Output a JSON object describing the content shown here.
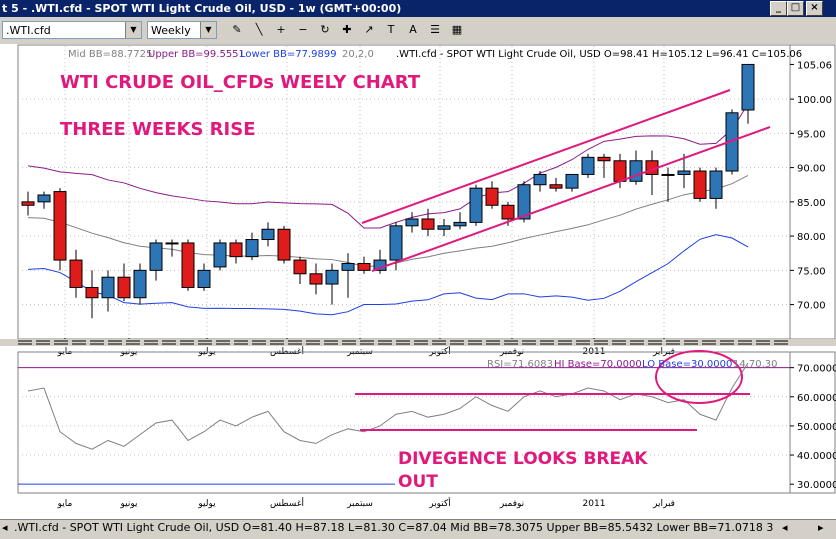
{
  "window": {
    "title": "t 5 - .WTI.cfd - SPOT WTI Light Crude Oil, USD - 1w (GMT+00:00)",
    "buttons": [
      "_",
      "□",
      "×"
    ]
  },
  "toolbar": {
    "symbol_value": ".WTI.cfd",
    "period_value": "Weekly",
    "tools": [
      "pencil-icon",
      "line-icon",
      "zoom-in-icon",
      "zoom-out-icon",
      "refresh-icon",
      "crosshair-icon",
      "arrow-icon",
      "text-icon",
      "label-icon",
      "list-icon",
      "grid-icon"
    ],
    "tool_glyphs": [
      "✎",
      "╲",
      "+",
      "−",
      "↻",
      "✚",
      "↗",
      "T",
      "A",
      "☰",
      "▦"
    ]
  },
  "price_panel": {
    "bb_legend_mid": "Mid BB=88.7725",
    "bb_legend_upper": "Upper BB=99.5551",
    "bb_legend_lower": "Lower BB=77.9899",
    "bb_legend_params": "20,2,0",
    "ohlc_legend": ".WTI.cfd - SPOT WTI Light Crude Oil, USD O=98.41 H=105.12 L=96.41 C=105.06",
    "annotation_title": "WTI CRUDE OIL_CFDs  WEELY CHART",
    "annotation_subtitle": "THREE WEEKS RISE",
    "y_ticks": [
      "105.06",
      "100.00",
      "95.00",
      "90.00",
      "85.00",
      "80.00",
      "75.00",
      "70.00"
    ],
    "x_labels": [
      "مايو",
      "يونيو",
      "يوليو",
      "أغسطس",
      "سبتمبر",
      "أكتوبر",
      "نوفمبر",
      "2011",
      "فبراير"
    ]
  },
  "rsi_panel": {
    "legend_rsi": "RSI=71.6083",
    "legend_hi": "HI Base=70.0000",
    "legend_lo": "LO Base=30.0000",
    "legend_params": "14,70,30",
    "y_ticks": [
      "70.0000",
      "60.0000",
      "50.0000",
      "40.0000",
      "30.0000"
    ],
    "x_labels": [
      "مايو",
      "يونيو",
      "يوليو",
      "أغسطس",
      "سبتمبر",
      "أكتوبر",
      "نوفمبر",
      "2011",
      "فبراير"
    ],
    "annotation_line1": "DIVEGENCE LOOKS BREAK",
    "annotation_line2": "OUT"
  },
  "status_bar": {
    "text": ".WTI.cfd - SPOT WTI Light Crude Oil, USD O=81.40 H=87.18 L=81.30 C=87.04  Mid BB=78.3075 Upper BB=85.5432 Lower BB=71.0718  3",
    "glyphs": [
      "◂",
      "▸",
      "◂",
      "▸"
    ]
  },
  "colors": {
    "bullish": "#2e75b6",
    "bearish": "#e01b1b",
    "annotation": "#e0197d",
    "bb_upper_lower": "#8b1a8b",
    "bb_lower": "#1e3ee6",
    "bb_mid": "#808080",
    "title_bar": "#0a246a"
  },
  "chart_data": {
    "type": "candlestick",
    "ylim": [
      66,
      106
    ],
    "candles": [
      {
        "o": 85.0,
        "h": 86.5,
        "l": 83.0,
        "c": 84.5
      },
      {
        "o": 85.0,
        "h": 86.5,
        "l": 84.0,
        "c": 86.0
      },
      {
        "o": 86.5,
        "h": 87.0,
        "l": 75.0,
        "c": 76.5
      },
      {
        "o": 76.5,
        "h": 78.0,
        "l": 71.0,
        "c": 72.5
      },
      {
        "o": 72.5,
        "h": 75.0,
        "l": 68.0,
        "c": 71.0
      },
      {
        "o": 71.0,
        "h": 75.0,
        "l": 69.0,
        "c": 74.0
      },
      {
        "o": 74.0,
        "h": 76.0,
        "l": 70.5,
        "c": 71.0
      },
      {
        "o": 71.0,
        "h": 76.0,
        "l": 70.0,
        "c": 75.0
      },
      {
        "o": 75.0,
        "h": 79.5,
        "l": 73.5,
        "c": 79.0
      },
      {
        "o": 79.0,
        "h": 79.5,
        "l": 77.0,
        "c": 79.0
      },
      {
        "o": 79.0,
        "h": 79.5,
        "l": 72.0,
        "c": 72.5
      },
      {
        "o": 72.5,
        "h": 76.0,
        "l": 72.0,
        "c": 75.0
      },
      {
        "o": 75.5,
        "h": 79.5,
        "l": 75.0,
        "c": 79.0
      },
      {
        "o": 79.0,
        "h": 79.5,
        "l": 76.0,
        "c": 77.0
      },
      {
        "o": 77.0,
        "h": 80.5,
        "l": 76.5,
        "c": 79.5
      },
      {
        "o": 79.5,
        "h": 82.0,
        "l": 78.5,
        "c": 81.0
      },
      {
        "o": 81.0,
        "h": 81.5,
        "l": 76.0,
        "c": 76.5
      },
      {
        "o": 76.5,
        "h": 77.0,
        "l": 73.0,
        "c": 74.5
      },
      {
        "o": 74.5,
        "h": 76.0,
        "l": 71.5,
        "c": 73.0
      },
      {
        "o": 73.0,
        "h": 76.0,
        "l": 70.0,
        "c": 75.0
      },
      {
        "o": 75.0,
        "h": 77.5,
        "l": 71.0,
        "c": 76.0
      },
      {
        "o": 76.0,
        "h": 77.0,
        "l": 74.5,
        "c": 75.0
      },
      {
        "o": 75.0,
        "h": 78.0,
        "l": 74.5,
        "c": 76.5
      },
      {
        "o": 76.5,
        "h": 82.0,
        "l": 75.0,
        "c": 81.5
      },
      {
        "o": 81.5,
        "h": 83.5,
        "l": 80.5,
        "c": 82.5
      },
      {
        "o": 82.5,
        "h": 84.0,
        "l": 80.0,
        "c": 81.0
      },
      {
        "o": 81.0,
        "h": 82.5,
        "l": 80.0,
        "c": 81.5
      },
      {
        "o": 81.5,
        "h": 83.5,
        "l": 81.0,
        "c": 82.0
      },
      {
        "o": 82.0,
        "h": 87.5,
        "l": 81.5,
        "c": 87.0
      },
      {
        "o": 87.0,
        "h": 88.0,
        "l": 84.0,
        "c": 84.5
      },
      {
        "o": 84.5,
        "h": 85.0,
        "l": 81.5,
        "c": 82.5
      },
      {
        "o": 82.5,
        "h": 88.0,
        "l": 82.0,
        "c": 87.5
      },
      {
        "o": 87.5,
        "h": 89.5,
        "l": 86.5,
        "c": 89.0
      },
      {
        "o": 87.5,
        "h": 88.5,
        "l": 86.5,
        "c": 87.0
      },
      {
        "o": 87.0,
        "h": 89.0,
        "l": 86.5,
        "c": 89.0
      },
      {
        "o": 89.0,
        "h": 92.0,
        "l": 88.5,
        "c": 91.5
      },
      {
        "o": 91.5,
        "h": 92.0,
        "l": 88.5,
        "c": 91.0
      },
      {
        "o": 91.0,
        "h": 92.0,
        "l": 87.0,
        "c": 88.0
      },
      {
        "o": 88.0,
        "h": 92.5,
        "l": 87.5,
        "c": 91.0
      },
      {
        "o": 91.0,
        "h": 92.5,
        "l": 86.0,
        "c": 89.0
      },
      {
        "o": 89.0,
        "h": 90.0,
        "l": 85.0,
        "c": 89.0
      },
      {
        "o": 89.0,
        "h": 92.0,
        "l": 87.0,
        "c": 89.5
      },
      {
        "o": 89.5,
        "h": 90.0,
        "l": 85.0,
        "c": 85.5
      },
      {
        "o": 85.5,
        "h": 90.0,
        "l": 84.0,
        "c": 89.5
      },
      {
        "o": 89.5,
        "h": 98.5,
        "l": 89.0,
        "c": 98.0
      },
      {
        "o": 98.41,
        "h": 105.12,
        "l": 96.41,
        "c": 105.06
      }
    ],
    "rsi_ylim": [
      28,
      74
    ],
    "rsi_values": [
      62,
      63,
      48,
      44,
      42,
      45,
      43,
      47,
      51,
      52,
      45,
      48,
      52,
      50,
      53,
      55,
      48,
      45,
      44,
      47,
      49,
      48,
      50,
      54,
      55,
      53,
      54,
      56,
      60,
      57,
      55,
      60,
      62,
      60,
      61,
      63,
      62,
      59,
      61,
      60,
      58,
      59,
      54,
      52,
      63,
      71.6083
    ]
  }
}
